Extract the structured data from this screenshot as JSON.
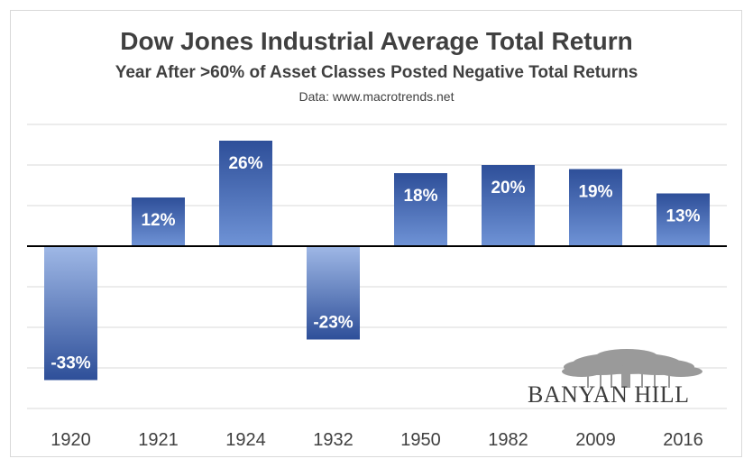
{
  "chart_data": {
    "type": "bar",
    "title": "Dow Jones Industrial Average Total Return",
    "subtitle": "Year After >60% of Asset Classes Posted Negative Total Returns",
    "source": "Data: www.macrotrends.net",
    "categories": [
      "1920",
      "1921",
      "1924",
      "1932",
      "1950",
      "1982",
      "2009",
      "2016"
    ],
    "values": [
      -33,
      12,
      26,
      -23,
      18,
      20,
      19,
      13
    ],
    "data_labels": [
      "-33%",
      "12%",
      "26%",
      "-23%",
      "18%",
      "20%",
      "19%",
      "13%"
    ],
    "ylim": [
      -40,
      30
    ],
    "gridlines": true,
    "xlabel": "",
    "ylabel": "",
    "colors": {
      "bar_dark": "#2e4f99",
      "bar_light": "#6f93d6",
      "grid": "#d9d9d9",
      "axis": "#000000",
      "text": "#404040"
    }
  },
  "logo": {
    "text": "BANYAN HILL"
  }
}
